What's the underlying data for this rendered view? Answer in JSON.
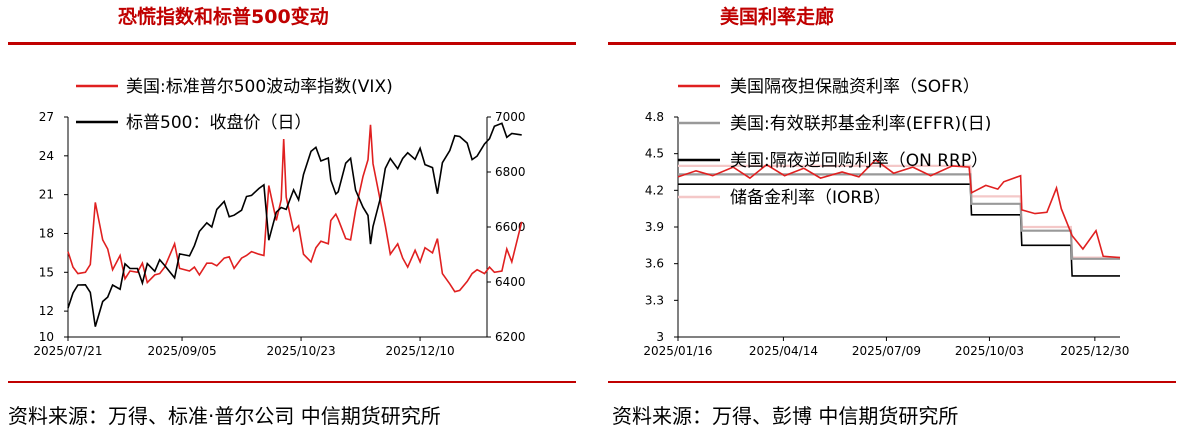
{
  "left_panel": {
    "title": "恐慌指数和标普500变动",
    "source": "资料来源：万得、标准·普尔公司 中信期货研究所"
  },
  "right_panel": {
    "title": "美国利率走廊",
    "source": "资料来源：万得、彭博 中信期货研究所"
  },
  "colors": {
    "accent": "#c00000",
    "vix": "#e02020",
    "spx": "#000000",
    "sofr": "#e02020",
    "effr": "#999999",
    "onrrp": "#000000",
    "iorb": "#f4c8c8"
  },
  "chart_data": [
    {
      "type": "line",
      "x_type": "date",
      "x_start": "2025-07-21",
      "x_end": "2026-01-06",
      "x_ticks": [
        "2025/07/21",
        "2025/09/05",
        "2025/10/23",
        "2025/12/10"
      ],
      "y_left": {
        "ticks": [
          "27",
          "24",
          "21",
          "18",
          "15",
          "12",
          "10"
        ],
        "range": [
          10,
          27
        ]
      },
      "y_right": {
        "ticks": [
          "7000",
          "6800",
          "6600",
          "6400",
          "6200"
        ],
        "range": [
          6200,
          7000
        ]
      },
      "legend": [
        "美国:标准普尔500波动率指数(VIX)",
        "标普500：收盘价（日）"
      ],
      "series": [
        {
          "name": "美国:标准普尔500波动率指数(VIX)",
          "axis": "left",
          "points": [
            [
              "2025-07-21",
              16.6
            ],
            [
              "2025-07-23",
              15.4
            ],
            [
              "2025-07-25",
              14.9
            ],
            [
              "2025-07-28",
              15.0
            ],
            [
              "2025-07-30",
              15.6
            ],
            [
              "2025-08-01",
              20.4
            ],
            [
              "2025-08-04",
              17.5
            ],
            [
              "2025-08-06",
              16.8
            ],
            [
              "2025-08-08",
              15.2
            ],
            [
              "2025-08-11",
              16.3
            ],
            [
              "2025-08-13",
              14.5
            ],
            [
              "2025-08-15",
              15.1
            ],
            [
              "2025-08-18",
              15.0
            ],
            [
              "2025-08-20",
              15.7
            ],
            [
              "2025-08-22",
              14.2
            ],
            [
              "2025-08-25",
              14.8
            ],
            [
              "2025-08-27",
              14.9
            ],
            [
              "2025-08-29",
              15.4
            ],
            [
              "2025-09-02",
              17.2
            ],
            [
              "2025-09-04",
              15.3
            ],
            [
              "2025-09-08",
              15.1
            ],
            [
              "2025-09-10",
              15.4
            ],
            [
              "2025-09-12",
              14.8
            ],
            [
              "2025-09-15",
              15.7
            ],
            [
              "2025-09-17",
              15.7
            ],
            [
              "2025-09-19",
              15.5
            ],
            [
              "2025-09-22",
              16.1
            ],
            [
              "2025-09-24",
              16.2
            ],
            [
              "2025-09-26",
              15.3
            ],
            [
              "2025-09-29",
              16.1
            ],
            [
              "2025-10-01",
              16.3
            ],
            [
              "2025-10-03",
              16.6
            ],
            [
              "2025-10-06",
              16.4
            ],
            [
              "2025-10-08",
              16.3
            ],
            [
              "2025-10-10",
              21.7
            ],
            [
              "2025-10-13",
              19.0
            ],
            [
              "2025-10-15",
              20.6
            ],
            [
              "2025-10-16",
              25.3
            ],
            [
              "2025-10-17",
              20.8
            ],
            [
              "2025-10-20",
              18.2
            ],
            [
              "2025-10-22",
              18.6
            ],
            [
              "2025-10-24",
              16.4
            ],
            [
              "2025-10-27",
              15.8
            ],
            [
              "2025-10-29",
              16.9
            ],
            [
              "2025-10-31",
              17.4
            ],
            [
              "2025-11-03",
              17.2
            ],
            [
              "2025-11-04",
              19.0
            ],
            [
              "2025-11-06",
              19.5
            ],
            [
              "2025-11-07",
              19.1
            ],
            [
              "2025-11-10",
              17.6
            ],
            [
              "2025-11-12",
              17.5
            ],
            [
              "2025-11-14",
              19.8
            ],
            [
              "2025-11-17",
              22.4
            ],
            [
              "2025-11-19",
              23.7
            ],
            [
              "2025-11-20",
              26.4
            ],
            [
              "2025-11-21",
              23.4
            ],
            [
              "2025-11-24",
              20.5
            ],
            [
              "2025-11-26",
              18.6
            ],
            [
              "2025-11-28",
              16.4
            ],
            [
              "2025-12-01",
              17.2
            ],
            [
              "2025-12-03",
              16.1
            ],
            [
              "2025-12-05",
              15.4
            ],
            [
              "2025-12-08",
              16.7
            ],
            [
              "2025-12-10",
              15.8
            ],
            [
              "2025-12-12",
              16.9
            ],
            [
              "2025-12-15",
              16.5
            ],
            [
              "2025-12-17",
              17.6
            ],
            [
              "2025-12-19",
              14.9
            ],
            [
              "2025-12-22",
              14.1
            ],
            [
              "2025-12-24",
              13.5
            ],
            [
              "2025-12-26",
              13.6
            ],
            [
              "2025-12-29",
              14.3
            ],
            [
              "2025-12-31",
              14.9
            ],
            [
              "2026-01-02",
              15.2
            ],
            [
              "2026-01-05",
              14.9
            ],
            [
              "2026-01-07",
              15.4
            ],
            [
              "2026-01-09",
              15.0
            ],
            [
              "2026-01-12",
              15.1
            ],
            [
              "2026-01-14",
              16.8
            ],
            [
              "2026-01-16",
              15.8
            ],
            [
              "2026-01-20",
              18.9
            ]
          ]
        },
        {
          "name": "标普500：收盘价（日）",
          "axis": "right",
          "points": [
            [
              "2025-07-21",
              6305
            ],
            [
              "2025-07-23",
              6360
            ],
            [
              "2025-07-25",
              6389
            ],
            [
              "2025-07-28",
              6390
            ],
            [
              "2025-07-30",
              6362
            ],
            [
              "2025-08-01",
              6238
            ],
            [
              "2025-08-04",
              6329
            ],
            [
              "2025-08-06",
              6345
            ],
            [
              "2025-08-08",
              6389
            ],
            [
              "2025-08-11",
              6374
            ],
            [
              "2025-08-13",
              6466
            ],
            [
              "2025-08-15",
              6449
            ],
            [
              "2025-08-18",
              6449
            ],
            [
              "2025-08-20",
              6396
            ],
            [
              "2025-08-22",
              6467
            ],
            [
              "2025-08-25",
              6439
            ],
            [
              "2025-08-27",
              6481
            ],
            [
              "2025-08-29",
              6460
            ],
            [
              "2025-09-02",
              6415
            ],
            [
              "2025-09-04",
              6502
            ],
            [
              "2025-09-08",
              6495
            ],
            [
              "2025-09-10",
              6532
            ],
            [
              "2025-09-12",
              6584
            ],
            [
              "2025-09-15",
              6615
            ],
            [
              "2025-09-17",
              6600
            ],
            [
              "2025-09-19",
              6664
            ],
            [
              "2025-09-22",
              6693
            ],
            [
              "2025-09-24",
              6637
            ],
            [
              "2025-09-26",
              6643
            ],
            [
              "2025-09-29",
              6661
            ],
            [
              "2025-10-01",
              6711
            ],
            [
              "2025-10-03",
              6715
            ],
            [
              "2025-10-06",
              6740
            ],
            [
              "2025-10-08",
              6753
            ],
            [
              "2025-10-10",
              6552
            ],
            [
              "2025-10-13",
              6654
            ],
            [
              "2025-10-15",
              6671
            ],
            [
              "2025-10-17",
              6664
            ],
            [
              "2025-10-20",
              6735
            ],
            [
              "2025-10-22",
              6699
            ],
            [
              "2025-10-24",
              6791
            ],
            [
              "2025-10-27",
              6875
            ],
            [
              "2025-10-29",
              6890
            ],
            [
              "2025-10-31",
              6840
            ],
            [
              "2025-11-03",
              6851
            ],
            [
              "2025-11-04",
              6771
            ],
            [
              "2025-11-06",
              6720
            ],
            [
              "2025-11-07",
              6728
            ],
            [
              "2025-11-10",
              6832
            ],
            [
              "2025-11-12",
              6850
            ],
            [
              "2025-11-14",
              6734
            ],
            [
              "2025-11-17",
              6672
            ],
            [
              "2025-11-19",
              6642
            ],
            [
              "2025-11-20",
              6538
            ],
            [
              "2025-11-21",
              6602
            ],
            [
              "2025-11-24",
              6705
            ],
            [
              "2025-11-26",
              6813
            ],
            [
              "2025-11-28",
              6849
            ],
            [
              "2025-12-01",
              6812
            ],
            [
              "2025-12-03",
              6849
            ],
            [
              "2025-12-05",
              6870
            ],
            [
              "2025-12-08",
              6846
            ],
            [
              "2025-12-10",
              6886
            ],
            [
              "2025-12-12",
              6827
            ],
            [
              "2025-12-15",
              6816
            ],
            [
              "2025-12-17",
              6721
            ],
            [
              "2025-12-19",
              6834
            ],
            [
              "2025-12-22",
              6878
            ],
            [
              "2025-12-24",
              6932
            ],
            [
              "2025-12-26",
              6929
            ],
            [
              "2025-12-29",
              6905
            ],
            [
              "2025-12-31",
              6845
            ],
            [
              "2026-01-02",
              6858
            ],
            [
              "2026-01-05",
              6902
            ],
            [
              "2026-01-07",
              6921
            ],
            [
              "2026-01-09",
              6966
            ],
            [
              "2026-01-12",
              6977
            ],
            [
              "2026-01-14",
              6926
            ],
            [
              "2026-01-16",
              6940
            ],
            [
              "2026-01-20",
              6935
            ]
          ]
        }
      ]
    },
    {
      "type": "line",
      "x_type": "date",
      "x_start": "2025-01-16",
      "x_end": "2026-01-20",
      "x_ticks": [
        "2025/01/16",
        "2025/04/14",
        "2025/07/09",
        "2025/10/03",
        "2025/12/30"
      ],
      "y": {
        "ticks": [
          "4.8",
          "4.5",
          "4.2",
          "3.9",
          "3.6",
          "3.3",
          "3"
        ],
        "range": [
          3.0,
          4.8
        ]
      },
      "legend": [
        "美国隔夜担保融资利率（SOFR）",
        "美国:有效联邦基金利率(EFFR)(日)",
        "美国:隔夜逆回购利率（ON RRP）",
        "储备金利率（IORB）"
      ],
      "series": [
        {
          "name": "美国隔夜担保融资利率（SOFR）",
          "color": "#e02020",
          "points": [
            [
              "2025-01-16",
              4.31
            ],
            [
              "2025-01-31",
              4.36
            ],
            [
              "2025-02-14",
              4.32
            ],
            [
              "2025-03-03",
              4.39
            ],
            [
              "2025-03-17",
              4.3
            ],
            [
              "2025-03-31",
              4.41
            ],
            [
              "2025-04-15",
              4.32
            ],
            [
              "2025-05-01",
              4.38
            ],
            [
              "2025-05-15",
              4.3
            ],
            [
              "2025-06-02",
              4.35
            ],
            [
              "2025-06-16",
              4.31
            ],
            [
              "2025-06-30",
              4.45
            ],
            [
              "2025-07-15",
              4.34
            ],
            [
              "2025-07-31",
              4.39
            ],
            [
              "2025-08-15",
              4.32
            ],
            [
              "2025-09-02",
              4.4
            ],
            [
              "2025-09-16",
              4.39
            ],
            [
              "2025-09-18",
              4.18
            ],
            [
              "2025-09-30",
              4.24
            ],
            [
              "2025-10-10",
              4.21
            ],
            [
              "2025-10-15",
              4.27
            ],
            [
              "2025-10-29",
              4.32
            ],
            [
              "2025-10-30",
              4.04
            ],
            [
              "2025-11-10",
              4.01
            ],
            [
              "2025-11-20",
              4.02
            ],
            [
              "2025-11-28",
              4.22
            ],
            [
              "2025-12-02",
              4.05
            ],
            [
              "2025-12-11",
              3.83
            ],
            [
              "2025-12-20",
              3.72
            ],
            [
              "2025-12-31",
              3.87
            ],
            [
              "2026-01-06",
              3.66
            ],
            [
              "2026-01-20",
              3.65
            ]
          ]
        },
        {
          "name": "美国:有效联邦基金利率(EFFR)(日)",
          "color": "#999999",
          "points": [
            [
              "2025-01-16",
              4.33
            ],
            [
              "2025-09-17",
              4.33
            ],
            [
              "2025-09-18",
              4.09
            ],
            [
              "2025-10-29",
              4.09
            ],
            [
              "2025-10-30",
              3.87
            ],
            [
              "2025-12-10",
              3.87
            ],
            [
              "2025-12-11",
              3.64
            ],
            [
              "2026-01-20",
              3.64
            ]
          ]
        },
        {
          "name": "美国:隔夜逆回购利率（ON RRP）",
          "color": "#000000",
          "points": [
            [
              "2025-01-16",
              4.25
            ],
            [
              "2025-09-17",
              4.25
            ],
            [
              "2025-09-18",
              4.0
            ],
            [
              "2025-10-29",
              4.0
            ],
            [
              "2025-10-30",
              3.75
            ],
            [
              "2025-12-10",
              3.75
            ],
            [
              "2025-12-11",
              3.5
            ],
            [
              "2026-01-20",
              3.5
            ]
          ]
        },
        {
          "name": "储备金利率（IORB）",
          "color": "#f4c8c8",
          "points": [
            [
              "2025-01-16",
              4.4
            ],
            [
              "2025-09-17",
              4.4
            ],
            [
              "2025-09-18",
              4.15
            ],
            [
              "2025-10-29",
              4.15
            ],
            [
              "2025-10-30",
              3.9
            ],
            [
              "2025-12-10",
              3.9
            ],
            [
              "2025-12-11",
              3.65
            ],
            [
              "2026-01-20",
              3.65
            ]
          ]
        }
      ]
    }
  ]
}
